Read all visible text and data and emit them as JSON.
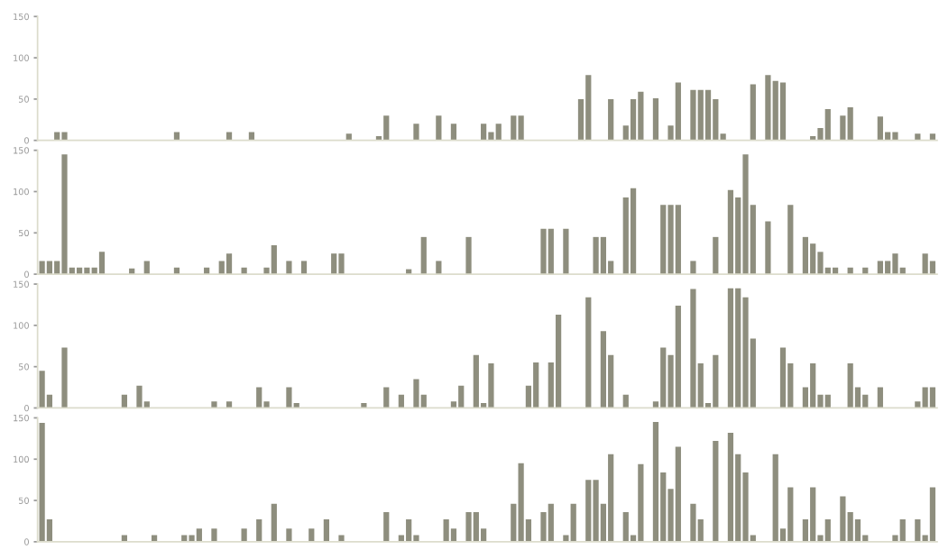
{
  "chart_data": [
    {
      "type": "bar",
      "color": "#8e8e7e",
      "ylim": [
        0,
        150
      ],
      "yticks": [
        0,
        50,
        100,
        150
      ],
      "tick_labels": "y",
      "grid": false,
      "categories": [
        null,
        null,
        null,
        null,
        null,
        null,
        null,
        null,
        null,
        null,
        null,
        null,
        null,
        null,
        null,
        null,
        null,
        null,
        null,
        null,
        null,
        null,
        null,
        null,
        null,
        null,
        null,
        null,
        null,
        null,
        null,
        null,
        null,
        null,
        null,
        null,
        null,
        null,
        null,
        null,
        null,
        null,
        null,
        null,
        null,
        null,
        null,
        null,
        null,
        null,
        null,
        null,
        null,
        null,
        null,
        null,
        null,
        null,
        null,
        null,
        null,
        null,
        null,
        null,
        null,
        null,
        null,
        null,
        null,
        null,
        null,
        null,
        null,
        null,
        null,
        null,
        null,
        null,
        null,
        null,
        null,
        null,
        null,
        null,
        null,
        null,
        null,
        null,
        null,
        null,
        null,
        null,
        null,
        null,
        null,
        null,
        null,
        null,
        null,
        null,
        null,
        null,
        null,
        null,
        null,
        null,
        null,
        null,
        null,
        null,
        null,
        null,
        null,
        null,
        null,
        null,
        null,
        null,
        null,
        null
      ],
      "values": [
        null,
        null,
        10,
        10,
        null,
        null,
        null,
        null,
        null,
        null,
        null,
        null,
        null,
        null,
        null,
        null,
        null,
        null,
        10,
        null,
        null,
        null,
        null,
        null,
        null,
        10,
        null,
        null,
        10,
        null,
        null,
        null,
        null,
        null,
        null,
        null,
        null,
        null,
        null,
        null,
        null,
        8,
        null,
        null,
        null,
        5,
        30,
        null,
        null,
        null,
        20,
        null,
        null,
        30,
        null,
        20,
        null,
        null,
        null,
        20,
        10,
        20,
        null,
        30,
        30,
        null,
        null,
        null,
        null,
        null,
        null,
        null,
        50,
        79,
        null,
        null,
        50,
        null,
        18,
        50,
        59,
        null,
        51,
        null,
        18,
        70,
        null,
        61,
        61,
        61,
        50,
        8,
        null,
        null,
        null,
        68,
        null,
        79,
        72,
        70,
        null,
        null,
        null,
        5,
        15,
        38,
        null,
        30,
        40,
        null,
        null,
        null,
        29,
        10,
        10,
        null,
        null,
        8,
        null,
        8
      ]
    },
    {
      "type": "bar",
      "color": "#8e8e7e",
      "ylim": [
        0,
        150
      ],
      "yticks": [
        0,
        50,
        100,
        150
      ],
      "tick_labels": "y",
      "grid": false,
      "categories": [
        null,
        null,
        null,
        null,
        null,
        null,
        null,
        null,
        null,
        null,
        null,
        null,
        null,
        null,
        null,
        null,
        null,
        null,
        null,
        null,
        null,
        null,
        null,
        null,
        null,
        null,
        null,
        null,
        null,
        null,
        null,
        null,
        null,
        null,
        null,
        null,
        null,
        null,
        null,
        null,
        null,
        null,
        null,
        null,
        null,
        null,
        null,
        null,
        null,
        null,
        null,
        null,
        null,
        null,
        null,
        null,
        null,
        null,
        null,
        null,
        null,
        null,
        null,
        null,
        null,
        null,
        null,
        null,
        null,
        null,
        null,
        null,
        null,
        null,
        null,
        null,
        null,
        null,
        null,
        null,
        null,
        null,
        null,
        null,
        null,
        null,
        null,
        null,
        null,
        null,
        null,
        null,
        null,
        null,
        null,
        null,
        null,
        null,
        null,
        null,
        null,
        null,
        null,
        null,
        null,
        null,
        null,
        null,
        null,
        null,
        null,
        null,
        null,
        null,
        null,
        null,
        null,
        null,
        null,
        null
      ],
      "values": [
        16,
        16,
        16,
        145,
        8,
        8,
        8,
        8,
        27,
        null,
        null,
        null,
        7,
        null,
        16,
        null,
        null,
        null,
        8,
        null,
        null,
        null,
        8,
        null,
        16,
        25,
        null,
        8,
        null,
        null,
        8,
        35,
        null,
        16,
        null,
        16,
        null,
        null,
        null,
        25,
        25,
        null,
        null,
        null,
        null,
        null,
        null,
        null,
        null,
        6,
        null,
        45,
        null,
        16,
        null,
        null,
        null,
        45,
        null,
        null,
        null,
        null,
        null,
        null,
        null,
        null,
        null,
        55,
        55,
        null,
        55,
        null,
        null,
        null,
        45,
        45,
        16,
        null,
        93,
        104,
        null,
        null,
        null,
        84,
        84,
        84,
        null,
        16,
        null,
        null,
        45,
        null,
        102,
        93,
        145,
        84,
        null,
        64,
        null,
        null,
        84,
        null,
        45,
        37,
        27,
        8,
        8,
        null,
        8,
        null,
        8,
        null,
        16,
        16,
        25,
        8,
        null,
        null,
        25,
        16
      ]
    },
    {
      "type": "bar",
      "color": "#8e8e7e",
      "ylim": [
        0,
        150
      ],
      "yticks": [
        0,
        50,
        100,
        150
      ],
      "tick_labels": "y",
      "grid": false,
      "categories": [
        null,
        null,
        null,
        null,
        null,
        null,
        null,
        null,
        null,
        null,
        null,
        null,
        null,
        null,
        null,
        null,
        null,
        null,
        null,
        null,
        null,
        null,
        null,
        null,
        null,
        null,
        null,
        null,
        null,
        null,
        null,
        null,
        null,
        null,
        null,
        null,
        null,
        null,
        null,
        null,
        null,
        null,
        null,
        null,
        null,
        null,
        null,
        null,
        null,
        null,
        null,
        null,
        null,
        null,
        null,
        null,
        null,
        null,
        null,
        null,
        null,
        null,
        null,
        null,
        null,
        null,
        null,
        null,
        null,
        null,
        null,
        null,
        null,
        null,
        null,
        null,
        null,
        null,
        null,
        null,
        null,
        null,
        null,
        null,
        null,
        null,
        null,
        null,
        null,
        null,
        null,
        null,
        null,
        null,
        null,
        null,
        null,
        null,
        null,
        null,
        null,
        null,
        null,
        null,
        null,
        null,
        null,
        null,
        null,
        null,
        null,
        null,
        null,
        null,
        null,
        null,
        null,
        null,
        null,
        null
      ],
      "values": [
        45,
        16,
        null,
        73,
        null,
        null,
        null,
        null,
        null,
        null,
        null,
        16,
        null,
        27,
        8,
        null,
        null,
        null,
        null,
        null,
        null,
        null,
        null,
        8,
        null,
        8,
        null,
        null,
        null,
        25,
        8,
        null,
        null,
        25,
        6,
        null,
        null,
        null,
        null,
        null,
        null,
        null,
        null,
        6,
        null,
        null,
        25,
        null,
        16,
        null,
        35,
        16,
        null,
        null,
        null,
        8,
        27,
        null,
        64,
        6,
        54,
        null,
        null,
        null,
        null,
        27,
        55,
        null,
        55,
        113,
        null,
        null,
        null,
        134,
        null,
        93,
        64,
        null,
        16,
        null,
        null,
        null,
        8,
        73,
        64,
        124,
        null,
        144,
        54,
        6,
        64,
        null,
        145,
        145,
        134,
        84,
        null,
        null,
        null,
        73,
        54,
        null,
        25,
        54,
        16,
        16,
        null,
        null,
        54,
        25,
        16,
        null,
        25,
        null,
        null,
        null,
        null,
        8,
        25,
        25
      ]
    },
    {
      "type": "bar",
      "color": "#8e8e7e",
      "ylim": [
        0,
        150
      ],
      "yticks": [
        0,
        50,
        100,
        150
      ],
      "tick_labels": "y",
      "grid": false,
      "categories": [
        null,
        null,
        null,
        null,
        null,
        null,
        null,
        null,
        null,
        null,
        null,
        null,
        null,
        null,
        null,
        null,
        null,
        null,
        null,
        null,
        null,
        null,
        null,
        null,
        null,
        null,
        null,
        null,
        null,
        null,
        null,
        null,
        null,
        null,
        null,
        null,
        null,
        null,
        null,
        null,
        null,
        null,
        null,
        null,
        null,
        null,
        null,
        null,
        null,
        null,
        null,
        null,
        null,
        null,
        null,
        null,
        null,
        null,
        null,
        null,
        null,
        null,
        null,
        null,
        null,
        null,
        null,
        null,
        null,
        null,
        null,
        null,
        null,
        null,
        null,
        null,
        null,
        null,
        null,
        null,
        null,
        null,
        null,
        null,
        null,
        null,
        null,
        null,
        null,
        null,
        null,
        null,
        null,
        null,
        null,
        null,
        null,
        null,
        null,
        null,
        null,
        null,
        null,
        null,
        null,
        null,
        null,
        null,
        null,
        null,
        null,
        null,
        null,
        null,
        null,
        null,
        null,
        null,
        null,
        null
      ],
      "values": [
        144,
        27,
        null,
        null,
        null,
        null,
        null,
        null,
        null,
        null,
        null,
        8,
        null,
        null,
        null,
        8,
        null,
        null,
        null,
        8,
        8,
        16,
        null,
        16,
        null,
        null,
        null,
        16,
        null,
        27,
        null,
        46,
        null,
        16,
        null,
        null,
        16,
        null,
        27,
        null,
        8,
        null,
        null,
        null,
        null,
        null,
        36,
        null,
        8,
        27,
        8,
        null,
        null,
        null,
        27,
        16,
        null,
        36,
        36,
        16,
        null,
        null,
        null,
        46,
        95,
        27,
        null,
        36,
        46,
        null,
        8,
        46,
        null,
        75,
        75,
        46,
        106,
        null,
        36,
        8,
        94,
        null,
        145,
        84,
        64,
        115,
        null,
        46,
        27,
        null,
        122,
        null,
        132,
        106,
        84,
        8,
        null,
        null,
        106,
        16,
        66,
        null,
        27,
        66,
        8,
        27,
        null,
        55,
        36,
        27,
        8,
        null,
        null,
        null,
        8,
        27,
        null,
        27,
        8,
        66
      ]
    }
  ]
}
